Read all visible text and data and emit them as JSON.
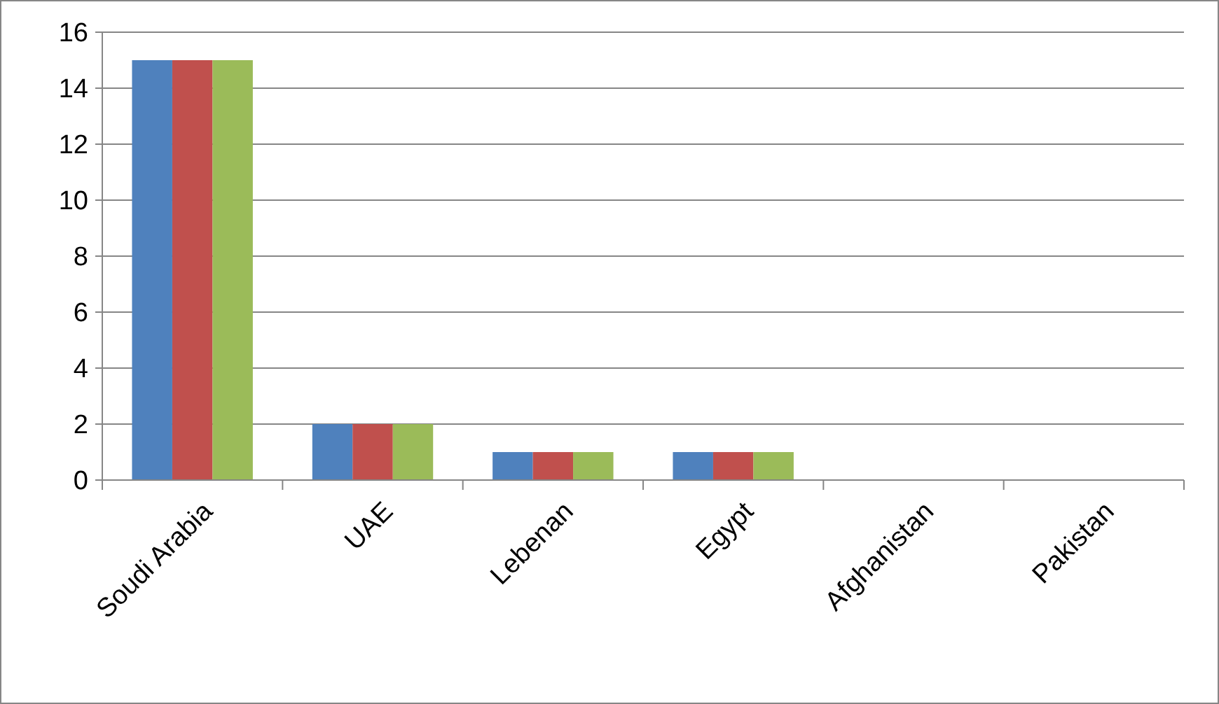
{
  "chart_data": {
    "type": "bar",
    "categories": [
      "Soudi Arabia",
      "UAE",
      "Lebenan",
      "Egypt",
      "Afghanistan",
      "Pakistan"
    ],
    "series": [
      {
        "color": "#4f81bd",
        "values": [
          15,
          2,
          1,
          1,
          0,
          0
        ]
      },
      {
        "color": "#c0504d",
        "values": [
          15,
          2,
          1,
          1,
          0,
          0
        ]
      },
      {
        "color": "#9bbb59",
        "values": [
          15,
          2,
          1,
          1,
          0,
          0
        ]
      }
    ],
    "ylim": [
      0,
      16
    ],
    "yticks": [
      0,
      2,
      4,
      6,
      8,
      10,
      12,
      14,
      16
    ],
    "grid": "y"
  }
}
